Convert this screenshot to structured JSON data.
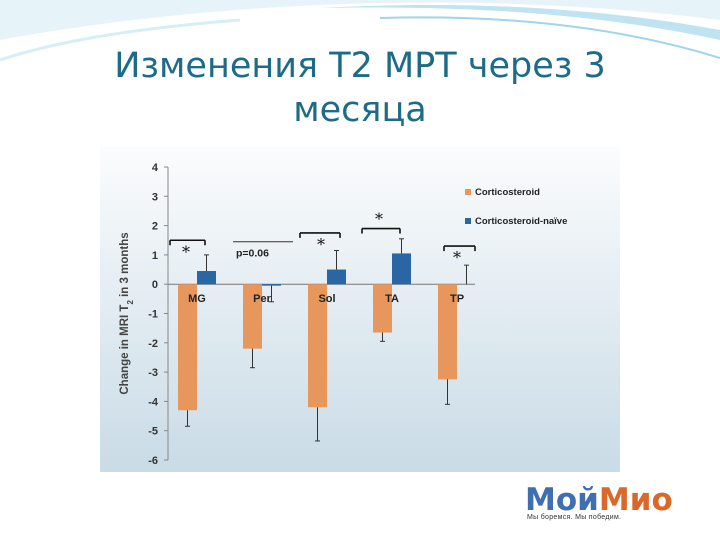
{
  "title": "Изменения Т2 МРТ через 3 месяца",
  "logo": {
    "part1": "Мой",
    "part2": "Мио",
    "tagline": "Мы боремся. Мы победим."
  },
  "colors": {
    "title": "#1d6b86",
    "corticosteroid": "#e8975c",
    "naive": "#2a66a3",
    "panel_top": "#fbfcfd",
    "panel_bottom": "#c9dbe6"
  },
  "chart_data": {
    "type": "bar",
    "categories": [
      "MG",
      "Per",
      "Sol",
      "TA",
      "TP"
    ],
    "ylabel": "Change in MRI T",
    "ylabel_sub": "2",
    "ylabel_tail": " in 3 months",
    "ylim": [
      -6,
      4
    ],
    "yticks": [
      "4",
      "3",
      "2",
      "1",
      "0",
      "-1",
      "-2",
      "-3",
      "-4",
      "-5",
      "-6"
    ],
    "legend_position": "top-right",
    "series": [
      {
        "name": "Corticosteroid",
        "values": [
          -4.3,
          -2.2,
          -4.2,
          -1.65,
          -3.25
        ],
        "errors": [
          0.55,
          0.65,
          1.15,
          0.3,
          0.85
        ]
      },
      {
        "name": "Corticosteroid-naïve",
        "values": [
          0.45,
          -0.05,
          0.5,
          1.05,
          0.0
        ],
        "errors": [
          0.55,
          0.55,
          0.65,
          0.5,
          0.65
        ]
      }
    ],
    "annotations": [
      "*",
      "p=0.06",
      "*",
      "*",
      "*"
    ]
  }
}
